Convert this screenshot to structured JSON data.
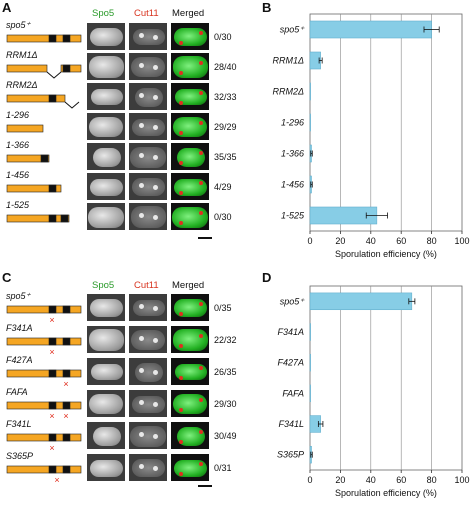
{
  "panels": {
    "A": {
      "letter": "A",
      "headers": [
        "Spo5",
        "Cut11",
        "Merged"
      ],
      "rows": [
        {
          "label": "spo5⁺",
          "count": "0/30"
        },
        {
          "label": "RRM1Δ",
          "count": "28/40"
        },
        {
          "label": "RRM2Δ",
          "count": "32/33"
        },
        {
          "label": "1-296",
          "count": "29/29"
        },
        {
          "label": "1-366",
          "count": "35/35"
        },
        {
          "label": "1-456",
          "count": "4/29"
        },
        {
          "label": "1-525",
          "count": "0/30"
        }
      ]
    },
    "C": {
      "letter": "C",
      "headers": [
        "Spo5",
        "Cut11",
        "Merged"
      ],
      "rows": [
        {
          "label": "spo5⁺",
          "count": "0/35"
        },
        {
          "label": "F341A",
          "count": "22/32"
        },
        {
          "label": "F427A",
          "count": "26/35"
        },
        {
          "label": "FAFA",
          "count": "29/30"
        },
        {
          "label": "F341L",
          "count": "30/49"
        },
        {
          "label": "S365P",
          "count": "0/31"
        }
      ]
    },
    "B": {
      "letter": "B"
    },
    "D": {
      "letter": "D"
    }
  },
  "colors": {
    "bar": "#87cde6",
    "orange": "#f5a623",
    "black": "#111111",
    "green": "#2a9a2a",
    "red": "#d8341f",
    "mark": "#e02a1a"
  },
  "chart_data": [
    {
      "type": "bar",
      "orientation": "horizontal",
      "categories": [
        "spo5⁺",
        "RRM1Δ",
        "RRM2Δ",
        "1-296",
        "1-366",
        "1-456",
        "1-525"
      ],
      "values": [
        80,
        7,
        0,
        0,
        1,
        1,
        44
      ],
      "errors": [
        5,
        1,
        0,
        0,
        0.5,
        0.5,
        7
      ],
      "xlabel": "Sporulation efficiency (%)",
      "xlim": [
        0,
        100
      ],
      "xticks": [
        0,
        20,
        40,
        60,
        80,
        100
      ],
      "grid": true
    },
    {
      "type": "bar",
      "orientation": "horizontal",
      "categories": [
        "spo5⁺",
        "F341A",
        "F427A",
        "FAFA",
        "F341L",
        "S365P"
      ],
      "values": [
        67,
        0,
        0,
        0,
        7,
        1
      ],
      "errors": [
        2,
        0,
        0,
        0,
        1.5,
        0.5
      ],
      "xlabel": "Sporulation efficiency (%)",
      "xlim": [
        0,
        100
      ],
      "xticks": [
        0,
        20,
        40,
        60,
        80,
        100
      ],
      "grid": true
    }
  ]
}
